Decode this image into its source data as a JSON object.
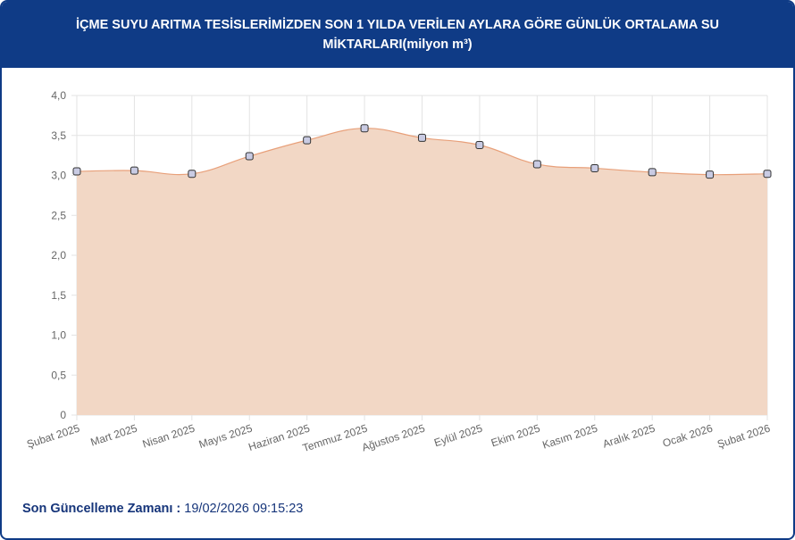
{
  "chart_data": {
    "type": "area",
    "title": "İÇME SUYU ARITMA TESİSLERİMİZDEN SON 1 YILDA VERİLEN AYLARA GÖRE GÜNLÜK ORTALAMA SU MİKTARLARI(milyon m³)",
    "categories": [
      "Şubat 2025",
      "Mart 2025",
      "Nisan 2025",
      "Mayıs 2025",
      "Haziran 2025",
      "Temmuz 2025",
      "Ağustos 2025",
      "Eylül 2025",
      "Ekim 2025",
      "Kasım 2025",
      "Aralık 2025",
      "Ocak 2026",
      "Şubat 2026"
    ],
    "values": [
      3.05,
      3.06,
      3.02,
      3.24,
      3.44,
      3.59,
      3.47,
      3.38,
      3.14,
      3.09,
      3.04,
      3.01,
      3.02
    ],
    "color": "#e8a07a",
    "fill": "#f2d7c5",
    "ylim": [
      0,
      4
    ],
    "yticks": [
      0,
      {
        "value": 0.5,
        "label": "0,5"
      },
      {
        "value": 1,
        "label": "1,0"
      },
      {
        "value": 1.5,
        "label": "1,5"
      },
      {
        "value": 2,
        "label": "2,0"
      },
      {
        "value": 2.5,
        "label": "2,5"
      },
      {
        "value": 3,
        "label": "3,0"
      },
      {
        "value": 3.5,
        "label": "3,5"
      },
      {
        "value": 4,
        "label": "4,0"
      }
    ],
    "grid": true
  },
  "footer": {
    "label": "Son Güncelleme Zamanı :",
    "time": "19/02/2026 09:15:23"
  }
}
